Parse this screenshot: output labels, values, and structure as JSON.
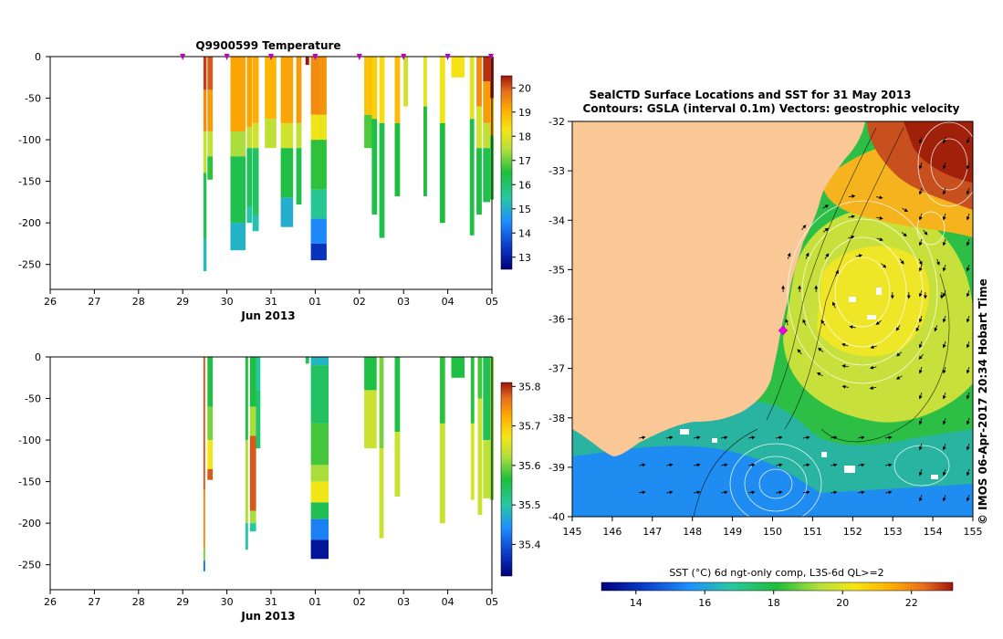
{
  "chart_data": [
    {
      "type": "heatmap",
      "title": "Q9900599  Temperature",
      "xlabel": "Jun 2013",
      "ylabel": "",
      "x_ticks": [
        "26",
        "27",
        "28",
        "29",
        "30",
        "31",
        "01",
        "02",
        "03",
        "04",
        "05"
      ],
      "y_ticks": [
        0,
        -50,
        -100,
        -150,
        -200,
        -250
      ],
      "ylim": [
        -280,
        0
      ],
      "colorbar": {
        "ticks": [
          13,
          14,
          15,
          16,
          17,
          18,
          19,
          20
        ],
        "range": [
          12.5,
          20.5
        ]
      },
      "profiles": [
        {
          "day": 3.47,
          "w": 0.07,
          "bottom": -258,
          "segments": [
            [
              0,
              -40,
              20.2
            ],
            [
              -40,
              -90,
              19.5
            ],
            [
              -90,
              -140,
              17.6
            ],
            [
              -140,
              -220,
              16.2
            ],
            [
              -220,
              -258,
              15.2
            ]
          ]
        },
        {
          "day": 3.56,
          "w": 0.12,
          "bottom": -148,
          "segments": [
            [
              0,
              -40,
              20.0
            ],
            [
              -40,
              -90,
              19.3
            ],
            [
              -90,
              -120,
              17.6
            ],
            [
              -120,
              -148,
              16.6
            ]
          ]
        },
        {
          "day": 4.08,
          "w": 0.34,
          "bottom": -233,
          "segments": [
            [
              0,
              -90,
              19.2
            ],
            [
              -90,
              -120,
              17.4
            ],
            [
              -120,
              -200,
              16.3
            ],
            [
              -200,
              -233,
              15.1
            ]
          ]
        },
        {
          "day": 4.45,
          "w": 0.12,
          "bottom": -200,
          "segments": [
            [
              0,
              -85,
              19.2
            ],
            [
              -85,
              -110,
              17.6
            ],
            [
              -110,
              -180,
              16.2
            ],
            [
              -180,
              -200,
              15.4
            ]
          ]
        },
        {
          "day": 4.58,
          "w": 0.14,
          "bottom": -210,
          "segments": [
            [
              0,
              -80,
              19.1
            ],
            [
              -80,
              -110,
              17.8
            ],
            [
              -110,
              -190,
              16.1
            ],
            [
              -190,
              -210,
              15.3
            ]
          ]
        },
        {
          "day": 4.86,
          "w": 0.26,
          "bottom": -110,
          "segments": [
            [
              0,
              -75,
              19.0
            ],
            [
              -75,
              -110,
              17.6
            ]
          ]
        },
        {
          "day": 5.22,
          "w": 0.28,
          "bottom": -205,
          "segments": [
            [
              0,
              -80,
              19.2
            ],
            [
              -80,
              -110,
              17.8
            ],
            [
              -110,
              -170,
              16.4
            ],
            [
              -170,
              -205,
              15.0
            ]
          ]
        },
        {
          "day": 5.57,
          "w": 0.12,
          "bottom": -178,
          "segments": [
            [
              0,
              -80,
              19.3
            ],
            [
              -80,
              -110,
              17.6
            ],
            [
              -110,
              -178,
              16.3
            ]
          ]
        },
        {
          "day": 5.78,
          "w": 0.08,
          "bottom": -10,
          "segments": [
            [
              0,
              -10,
              20.5
            ]
          ]
        },
        {
          "day": 5.9,
          "w": 0.28,
          "bottom": -245,
          "segments": [
            [
              0,
              -70,
              19.5
            ],
            [
              -70,
              -100,
              18.2
            ],
            [
              -100,
              -160,
              16.6
            ],
            [
              -160,
              -195,
              15.6
            ],
            [
              -195,
              -225,
              14.4
            ],
            [
              -225,
              -245,
              13.3
            ]
          ]
        },
        {
          "day": 6.1,
          "w": 0.16,
          "bottom": -245,
          "segments": [
            [
              0,
              -70,
              19.4
            ],
            [
              -70,
              -100,
              18.1
            ],
            [
              -100,
              -160,
              16.6
            ],
            [
              -160,
              -195,
              15.6
            ],
            [
              -195,
              -225,
              14.4
            ],
            [
              -225,
              -245,
              13.3
            ]
          ]
        },
        {
          "day": 7.11,
          "w": 0.2,
          "bottom": -110,
          "segments": [
            [
              0,
              -70,
              18.8
            ],
            [
              -70,
              -110,
              16.8
            ]
          ]
        },
        {
          "day": 7.28,
          "w": 0.12,
          "bottom": -190,
          "segments": [
            [
              0,
              -75,
              18.6
            ],
            [
              -75,
              -190,
              16.4
            ]
          ]
        },
        {
          "day": 7.45,
          "w": 0.12,
          "bottom": -218,
          "segments": [
            [
              0,
              -80,
              18.4
            ],
            [
              -80,
              -218,
              16.3
            ]
          ]
        },
        {
          "day": 7.8,
          "w": 0.12,
          "bottom": -168,
          "segments": [
            [
              0,
              -80,
              18.9
            ],
            [
              -80,
              -168,
              16.5
            ]
          ]
        },
        {
          "day": 8.0,
          "w": 0.1,
          "bottom": -60,
          "segments": [
            [
              0,
              -60,
              17.8
            ]
          ]
        },
        {
          "day": 8.45,
          "w": 0.08,
          "bottom": -168,
          "segments": [
            [
              0,
              -60,
              18.0
            ],
            [
              -60,
              -168,
              16.5
            ]
          ]
        },
        {
          "day": 8.82,
          "w": 0.12,
          "bottom": -200,
          "segments": [
            [
              0,
              -80,
              18.2
            ],
            [
              -80,
              -200,
              16.5
            ]
          ]
        },
        {
          "day": 9.08,
          "w": 0.3,
          "bottom": -25,
          "segments": [
            [
              0,
              -25,
              18.3
            ]
          ]
        },
        {
          "day": 9.5,
          "w": 0.1,
          "bottom": -215,
          "segments": [
            [
              0,
              -75,
              18.0
            ],
            [
              -75,
              -215,
              16.4
            ]
          ]
        },
        {
          "day": 9.65,
          "w": 0.12,
          "bottom": -190,
          "segments": [
            [
              0,
              -60,
              19.5
            ],
            [
              -60,
              -110,
              17.8
            ],
            [
              -110,
              -190,
              16.4
            ]
          ]
        },
        {
          "day": 9.8,
          "w": 0.16,
          "bottom": -175,
          "segments": [
            [
              0,
              -30,
              20.3
            ],
            [
              -30,
              -80,
              19.3
            ],
            [
              -80,
              -110,
              17.6
            ],
            [
              -110,
              -175,
              16.3
            ]
          ]
        },
        {
          "day": 9.96,
          "w": 0.08,
          "bottom": -172,
          "segments": [
            [
              0,
              -50,
              20.4
            ],
            [
              -50,
              -95,
              19.2
            ],
            [
              -95,
              -172,
              16.6
            ]
          ]
        }
      ]
    },
    {
      "type": "heatmap",
      "title": "",
      "xlabel": "Jun 2013",
      "ylabel": "",
      "x_ticks": [
        "26",
        "27",
        "28",
        "29",
        "30",
        "31",
        "01",
        "02",
        "03",
        "04",
        "05"
      ],
      "y_ticks": [
        0,
        -50,
        -100,
        -150,
        -200,
        -250
      ],
      "ylim": [
        -280,
        0
      ],
      "colorbar": {
        "ticks": [
          35.4,
          35.5,
          35.6,
          35.7,
          35.8
        ],
        "range": [
          35.32,
          35.81
        ]
      },
      "profiles": [
        {
          "day": 3.47,
          "w": 0.04,
          "bottom": -258,
          "segments": [
            [
              0,
              -160,
              35.78
            ],
            [
              -160,
              -230,
              35.75
            ],
            [
              -230,
              -245,
              35.6
            ],
            [
              -245,
              -258,
              35.42
            ]
          ]
        },
        {
          "day": 3.56,
          "w": 0.12,
          "bottom": -148,
          "segments": [
            [
              0,
              -60,
              35.56
            ],
            [
              -60,
              -100,
              35.6
            ],
            [
              -100,
              -135,
              35.67
            ],
            [
              -135,
              -148,
              35.78
            ]
          ]
        },
        {
          "day": 4.42,
          "w": 0.06,
          "bottom": -232,
          "segments": [
            [
              0,
              -100,
              35.56
            ],
            [
              -100,
              -200,
              35.62
            ],
            [
              -200,
              -232,
              35.5
            ]
          ]
        },
        {
          "day": 4.52,
          "w": 0.14,
          "bottom": -210,
          "segments": [
            [
              0,
              -60,
              35.56
            ],
            [
              -60,
              -95,
              35.62
            ],
            [
              -95,
              -185,
              35.78
            ],
            [
              -185,
              -200,
              35.62
            ],
            [
              -200,
              -210,
              35.5
            ]
          ]
        },
        {
          "day": 4.66,
          "w": 0.1,
          "bottom": -110,
          "segments": [
            [
              0,
              -40,
              35.5
            ],
            [
              -40,
              -110,
              35.53
            ]
          ]
        },
        {
          "day": 5.78,
          "w": 0.08,
          "bottom": -8,
          "segments": [
            [
              0,
              -8,
              35.55
            ]
          ]
        },
        {
          "day": 5.9,
          "w": 0.4,
          "bottom": -243,
          "segments": [
            [
              0,
              -10,
              35.48
            ],
            [
              -10,
              -80,
              35.54
            ],
            [
              -80,
              -130,
              35.58
            ],
            [
              -130,
              -150,
              35.62
            ],
            [
              -150,
              -175,
              35.67
            ],
            [
              -175,
              -195,
              35.55
            ],
            [
              -195,
              -220,
              35.43
            ],
            [
              -220,
              -243,
              35.34
            ]
          ]
        },
        {
          "day": 7.11,
          "w": 0.28,
          "bottom": -110,
          "segments": [
            [
              0,
              -40,
              35.56
            ],
            [
              -40,
              -110,
              35.64
            ]
          ]
        },
        {
          "day": 7.45,
          "w": 0.1,
          "bottom": -218,
          "segments": [
            [
              0,
              -110,
              35.6
            ],
            [
              -110,
              -218,
              35.64
            ]
          ]
        },
        {
          "day": 7.8,
          "w": 0.12,
          "bottom": -168,
          "segments": [
            [
              0,
              -90,
              35.56
            ],
            [
              -90,
              -168,
              35.64
            ]
          ]
        },
        {
          "day": 8.82,
          "w": 0.12,
          "bottom": -200,
          "segments": [
            [
              0,
              -80,
              35.57
            ],
            [
              -80,
              -200,
              35.64
            ]
          ]
        },
        {
          "day": 9.08,
          "w": 0.3,
          "bottom": -25,
          "segments": [
            [
              0,
              -25,
              35.56
            ]
          ]
        },
        {
          "day": 9.52,
          "w": 0.08,
          "bottom": -172,
          "segments": [
            [
              0,
              -80,
              35.57
            ],
            [
              -80,
              -172,
              35.65
            ]
          ]
        },
        {
          "day": 9.68,
          "w": 0.1,
          "bottom": -190,
          "segments": [
            [
              0,
              -50,
              35.58
            ],
            [
              -50,
              -190,
              35.64
            ]
          ]
        },
        {
          "day": 9.8,
          "w": 0.16,
          "bottom": -170,
          "segments": [
            [
              0,
              -100,
              35.55
            ],
            [
              -100,
              -170,
              35.63
            ]
          ]
        },
        {
          "day": 9.96,
          "w": 0.08,
          "bottom": -172,
          "segments": [
            [
              0,
              -172,
              35.6
            ]
          ]
        }
      ]
    },
    {
      "type": "heatmap",
      "title": "SealCTD Surface Locations and SST for 31 May 2013",
      "subtitle": "Contours: GSLA (interval 0.1m) Vectors: geostrophic velocity",
      "xlabel": "",
      "ylabel": "",
      "x_ticks": [
        "145",
        "146",
        "147",
        "148",
        "149",
        "150",
        "151",
        "152",
        "153",
        "154",
        "155"
      ],
      "y_ticks": [
        "-32",
        "-33",
        "-34",
        "-35",
        "-36",
        "-37",
        "-38",
        "-39",
        "-40"
      ],
      "xlim": [
        145,
        155
      ],
      "ylim": [
        -40,
        -32
      ],
      "colorbar": {
        "label": "SST (°C) 6d ngt-only comp, L3S-6d QL>=2",
        "ticks": [
          "14",
          "16",
          "18",
          "20",
          "22"
        ],
        "range": [
          13,
          23.2
        ]
      },
      "credit": "© IMOS 06-Apr-2017 20:34 Hobart Time",
      "seal_location": {
        "lon": 150.15,
        "lat": -36.2
      }
    }
  ]
}
